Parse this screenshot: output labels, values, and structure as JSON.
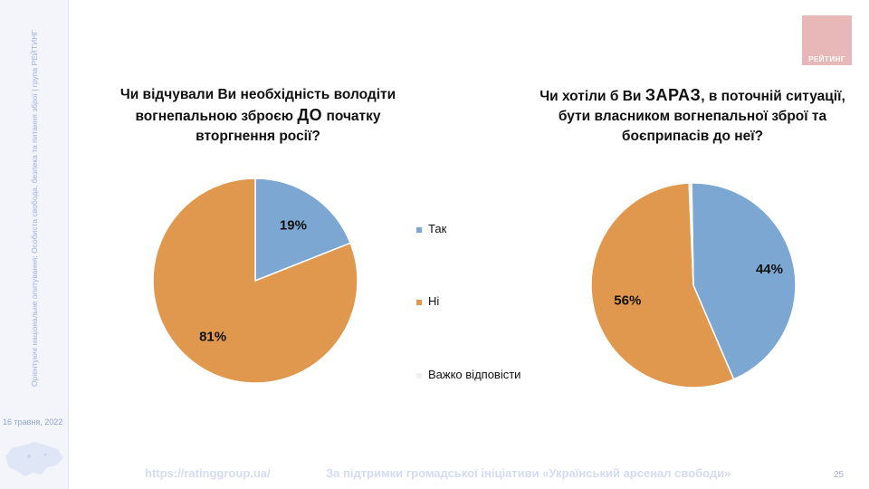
{
  "sidebar": {
    "vertical_text": "Орієнтуючі національне опитування: Особиста свобода, безпека та питання зброї | група РЕЙТИНГ",
    "date": "16 травня, 2022"
  },
  "logo": {
    "text": "РЕЙТИНГ"
  },
  "legend": {
    "items": [
      {
        "label": "Так",
        "color": "#7ba7d2"
      },
      {
        "label": "Ні",
        "color": "#e0974e"
      },
      {
        "label": "Важко відповісти",
        "color": "#f0f0f0"
      }
    ]
  },
  "chart_data": [
    {
      "type": "pie",
      "title_parts": [
        "Чи відчували Ви необхідність володіти вогнепальною зброєю ",
        "ДО",
        " початку вторгнення росії?"
      ],
      "categories": [
        "Так",
        "Ні",
        "Важко відповісти"
      ],
      "values": [
        19,
        81,
        0
      ],
      "labels": [
        "19%",
        "81%",
        ""
      ],
      "colors": [
        "#7ba7d2",
        "#e0974e",
        "#f0f0f0"
      ]
    },
    {
      "type": "pie",
      "title_parts": [
        "Чи хотіли б Ви ",
        "ЗАРАЗ",
        ", в поточній ситуації, бути власником вогнепальної зброї та боєприпасів до неї?"
      ],
      "categories": [
        "Так",
        "Ні",
        "Важко відповісти"
      ],
      "values": [
        44,
        56,
        0.4
      ],
      "labels": [
        "44%",
        "56%",
        ""
      ],
      "colors": [
        "#7ba7d2",
        "#e0974e",
        "#f0f0f0"
      ]
    }
  ],
  "footer": {
    "url": "https://ratinggroup.ua/",
    "support": "За підтримки  громадської ініціативи «Український арсенал свободи»",
    "page": "25"
  }
}
